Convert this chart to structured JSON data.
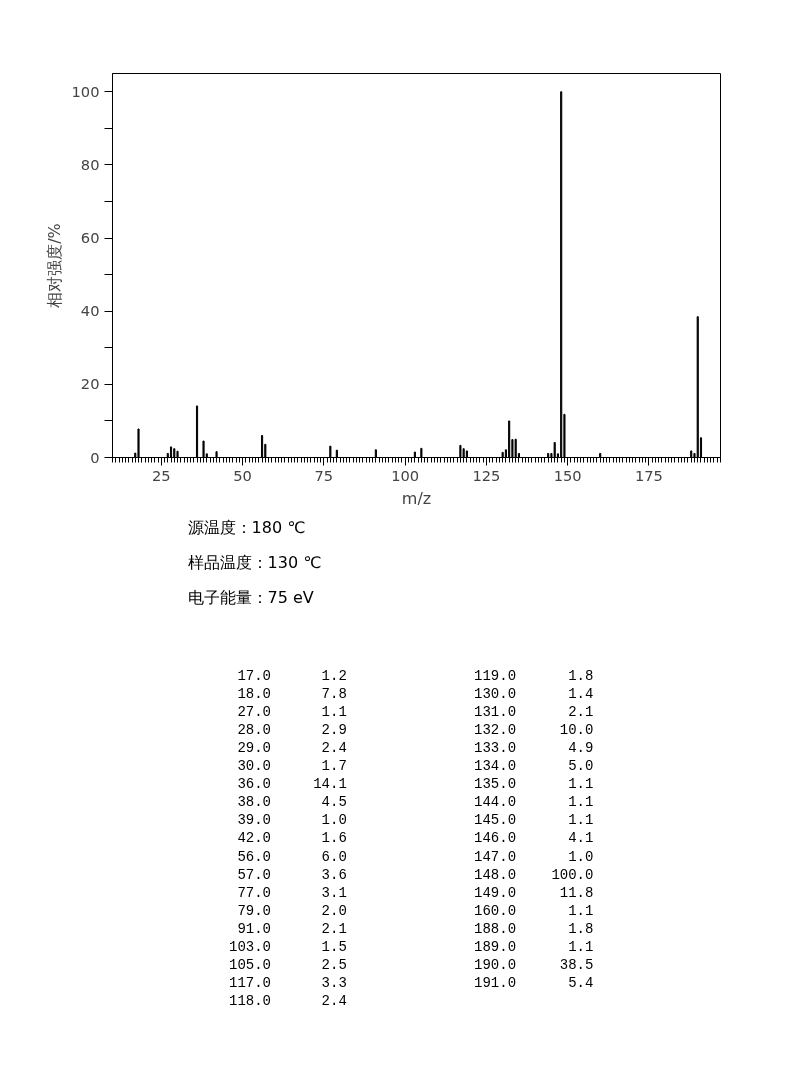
{
  "chart_data": [
    {
      "type": "bar",
      "xlabel": "m/z",
      "ylabel": "相对强度/%",
      "x": [
        17.0,
        18.0,
        27.0,
        28.0,
        29.0,
        30.0,
        36.0,
        38.0,
        39.0,
        42.0,
        56.0,
        57.0,
        77.0,
        79.0,
        91.0,
        103.0,
        105.0,
        117.0,
        118.0,
        119.0,
        130.0,
        131.0,
        132.0,
        133.0,
        134.0,
        135.0,
        144.0,
        145.0,
        146.0,
        147.0,
        148.0,
        149.0,
        160.0,
        188.0,
        189.0,
        190.0,
        191.0
      ],
      "values": [
        1.2,
        7.8,
        1.1,
        2.9,
        2.4,
        1.7,
        14.1,
        4.5,
        1.0,
        1.6,
        6.0,
        3.6,
        3.1,
        2.0,
        2.1,
        1.5,
        2.5,
        3.3,
        2.4,
        1.8,
        1.4,
        2.1,
        10.0,
        4.9,
        5.0,
        1.1,
        1.1,
        1.1,
        4.1,
        1.0,
        100.0,
        11.8,
        1.1,
        1.8,
        1.1,
        38.5,
        5.4
      ],
      "color": "#000000",
      "xlim": [
        10,
        197
      ],
      "ylim": [
        0,
        105
      ],
      "xticks": [
        25,
        50,
        75,
        100,
        125,
        150,
        175
      ],
      "yticks": [
        0,
        {
          "value": 10,
          "label": null
        },
        20,
        {
          "value": 30,
          "label": null
        },
        40,
        {
          "value": 50,
          "label": null
        },
        60,
        {
          "value": 70,
          "label": null
        },
        80,
        {
          "value": 90,
          "label": null
        },
        100
      ],
      "annotations": [
        "源温度：180 ℃",
        "样品温度：130 ℃",
        "电子能量：75 eV"
      ]
    },
    {
      "type": "other",
      "categories": [
        "17.0",
        "18.0",
        "27.0",
        "28.0",
        "29.0",
        "30.0",
        "36.0",
        "38.0",
        "39.0",
        "42.0",
        "56.0",
        "57.0",
        "77.0",
        "79.0",
        "91.0",
        "103.0",
        "105.0",
        "117.0",
        "118.0",
        "119.0",
        "130.0",
        "131.0",
        "132.0",
        "133.0",
        "134.0",
        "135.0",
        "144.0",
        "145.0",
        "146.0",
        "147.0",
        "148.0",
        "149.0",
        "160.0",
        "188.0",
        "189.0",
        "190.0",
        "191.0"
      ],
      "value_labels": [
        "1.2",
        "7.8",
        "1.1",
        "2.9",
        "2.4",
        "1.7",
        "14.1",
        "4.5",
        "1.0",
        "1.6",
        "6.0",
        "3.6",
        "3.1",
        "2.0",
        "2.1",
        "1.5",
        "2.5",
        "3.3",
        "2.4",
        "1.8",
        "1.4",
        "2.1",
        "10.0",
        "4.9",
        "5.0",
        "1.1",
        "1.1",
        "1.1",
        "4.1",
        "1.0",
        "100.0",
        "11.8",
        "1.1",
        "1.8",
        "1.1",
        "38.5",
        "5.4"
      ],
      "values": [
        1.2,
        7.8,
        1.1,
        2.9,
        2.4,
        1.7,
        14.1,
        4.5,
        1.0,
        1.6,
        6.0,
        3.6,
        3.1,
        2.0,
        2.1,
        1.5,
        2.5,
        3.3,
        2.4,
        1.8,
        1.4,
        2.1,
        10.0,
        4.9,
        5.0,
        1.1,
        1.1,
        1.1,
        4.1,
        1.0,
        100.0,
        11.8,
        1.1,
        1.8,
        1.1,
        38.5,
        5.4
      ]
    }
  ]
}
